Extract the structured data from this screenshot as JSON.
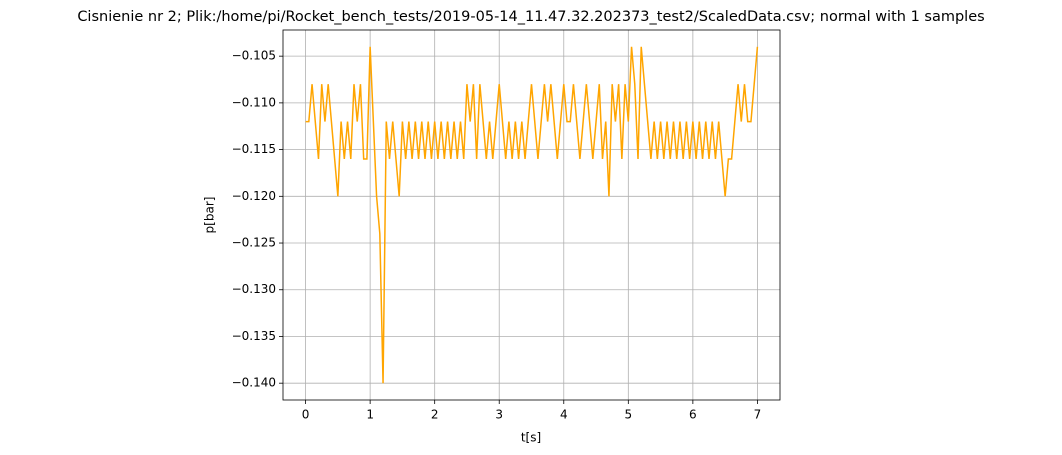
{
  "chart_data": {
    "type": "line",
    "title": "Cisnienie nr 2; Plik:/home/pi/Rocket_bench_tests/2019-05-14_11.47.32.202373_test2/ScaledData.csv; normal with 1 samples",
    "xlabel": "t[s]",
    "ylabel": "p[bar]",
    "grid": true,
    "xlim": [
      -0.35,
      7.35
    ],
    "ylim": [
      -0.1418,
      -0.1022
    ],
    "xticks": [
      0,
      1,
      2,
      3,
      4,
      5,
      6,
      7
    ],
    "yticks": [
      {
        "value": -0.14,
        "label": "−0.140"
      },
      {
        "value": -0.135,
        "label": "−0.135"
      },
      {
        "value": -0.13,
        "label": "−0.130"
      },
      {
        "value": -0.125,
        "label": "−0.125"
      },
      {
        "value": -0.12,
        "label": "−0.120"
      },
      {
        "value": -0.115,
        "label": "−0.115"
      },
      {
        "value": -0.11,
        "label": "−0.110"
      },
      {
        "value": -0.105,
        "label": "−0.105"
      }
    ],
    "x": [
      0,
      0.05,
      0.1,
      0.15,
      0.2,
      0.25,
      0.3,
      0.35,
      0.4,
      0.45,
      0.5,
      0.55,
      0.6,
      0.65,
      0.7,
      0.75,
      0.8,
      0.85,
      0.9,
      0.95,
      1.0,
      1.05,
      1.1,
      1.15,
      1.2,
      1.25,
      1.3,
      1.35,
      1.4,
      1.45,
      1.5,
      1.55,
      1.6,
      1.65,
      1.7,
      1.75,
      1.8,
      1.85,
      1.9,
      1.95,
      2.0,
      2.05,
      2.1,
      2.15,
      2.2,
      2.25,
      2.3,
      2.35,
      2.4,
      2.45,
      2.5,
      2.55,
      2.6,
      2.65,
      2.7,
      2.75,
      2.8,
      2.85,
      2.9,
      2.95,
      3.0,
      3.05,
      3.1,
      3.15,
      3.2,
      3.25,
      3.3,
      3.35,
      3.4,
      3.45,
      3.5,
      3.55,
      3.6,
      3.65,
      3.7,
      3.75,
      3.8,
      3.85,
      3.9,
      3.95,
      4.0,
      4.05,
      4.1,
      4.15,
      4.2,
      4.25,
      4.3,
      4.35,
      4.4,
      4.45,
      4.5,
      4.55,
      4.6,
      4.65,
      4.7,
      4.75,
      4.8,
      4.85,
      4.9,
      4.95,
      5.0,
      5.05,
      5.1,
      5.15,
      5.2,
      5.25,
      5.3,
      5.35,
      5.4,
      5.45,
      5.5,
      5.55,
      5.6,
      5.65,
      5.7,
      5.75,
      5.8,
      5.85,
      5.9,
      5.95,
      6.0,
      6.05,
      6.1,
      6.15,
      6.2,
      6.25,
      6.3,
      6.35,
      6.4,
      6.45,
      6.5,
      6.55,
      6.6,
      6.65,
      6.7,
      6.75,
      6.8,
      6.85,
      6.9,
      6.95,
      7.0
    ],
    "series": [
      {
        "name": "p",
        "color": "#ffa500",
        "values": [
          -0.112,
          -0.112,
          -0.108,
          -0.112,
          -0.116,
          -0.108,
          -0.112,
          -0.108,
          -0.112,
          -0.116,
          -0.12,
          -0.112,
          -0.116,
          -0.112,
          -0.116,
          -0.108,
          -0.112,
          -0.108,
          -0.116,
          -0.116,
          -0.104,
          -0.112,
          -0.12,
          -0.124,
          -0.14,
          -0.112,
          -0.116,
          -0.112,
          -0.116,
          -0.12,
          -0.112,
          -0.116,
          -0.112,
          -0.116,
          -0.112,
          -0.116,
          -0.112,
          -0.116,
          -0.112,
          -0.116,
          -0.112,
          -0.116,
          -0.112,
          -0.116,
          -0.112,
          -0.116,
          -0.112,
          -0.116,
          -0.112,
          -0.116,
          -0.108,
          -0.112,
          -0.108,
          -0.116,
          -0.108,
          -0.112,
          -0.116,
          -0.112,
          -0.116,
          -0.112,
          -0.108,
          -0.112,
          -0.116,
          -0.112,
          -0.116,
          -0.112,
          -0.116,
          -0.112,
          -0.116,
          -0.112,
          -0.108,
          -0.112,
          -0.116,
          -0.112,
          -0.108,
          -0.112,
          -0.108,
          -0.112,
          -0.116,
          -0.112,
          -0.108,
          -0.112,
          -0.112,
          -0.108,
          -0.112,
          -0.116,
          -0.112,
          -0.108,
          -0.112,
          -0.116,
          -0.112,
          -0.108,
          -0.116,
          -0.112,
          -0.12,
          -0.108,
          -0.112,
          -0.108,
          -0.116,
          -0.108,
          -0.112,
          -0.104,
          -0.108,
          -0.116,
          -0.104,
          -0.108,
          -0.112,
          -0.116,
          -0.112,
          -0.116,
          -0.112,
          -0.116,
          -0.112,
          -0.116,
          -0.112,
          -0.116,
          -0.112,
          -0.116,
          -0.112,
          -0.116,
          -0.112,
          -0.116,
          -0.112,
          -0.116,
          -0.112,
          -0.116,
          -0.112,
          -0.116,
          -0.112,
          -0.116,
          -0.12,
          -0.116,
          -0.116,
          -0.112,
          -0.108,
          -0.112,
          -0.108,
          -0.112,
          -0.112,
          -0.108,
          -0.104
        ]
      }
    ]
  }
}
